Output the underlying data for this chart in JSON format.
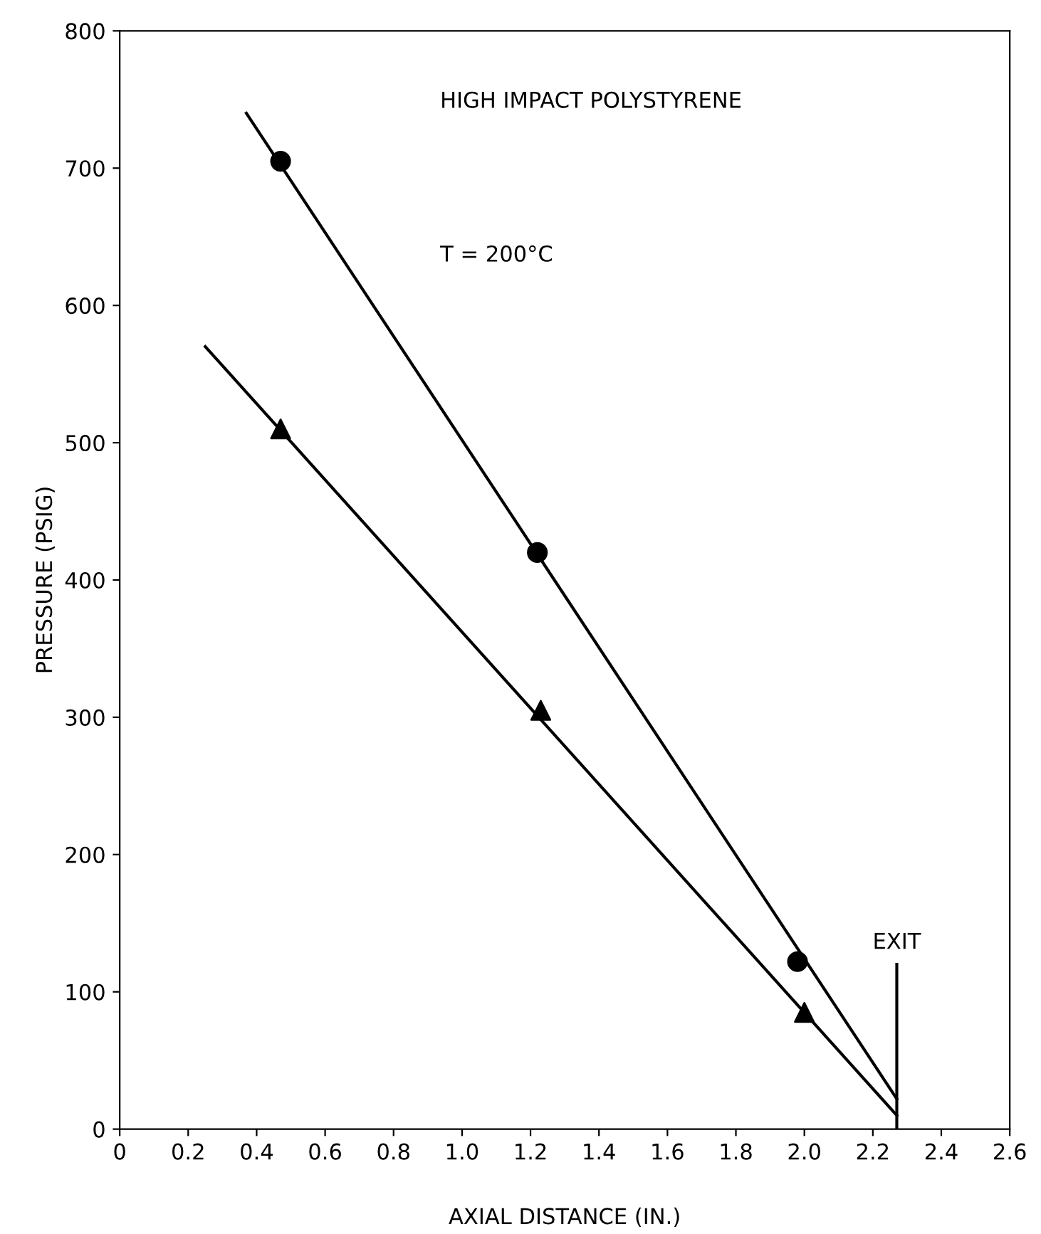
{
  "chart_data": {
    "type": "scatter",
    "xlabel": "AXIAL DISTANCE (IN.)",
    "ylabel": "PRESSURE (PSIG)",
    "annotations": [
      "HIGH IMPACT POLYSTYRENE",
      "T = 200°C"
    ],
    "series": [
      {
        "marker": "circle",
        "color": "#000000",
        "x": [
          0.47,
          1.22,
          1.98
        ],
        "values": [
          705,
          420,
          122
        ]
      },
      {
        "marker": "triangle",
        "color": "#000000",
        "x": [
          0.47,
          1.23,
          2.0
        ],
        "values": [
          510,
          305,
          85
        ]
      },
      {
        "type": "line",
        "color": "#000000",
        "x": [
          0.37,
          2.27
        ],
        "values": [
          740,
          22
        ]
      },
      {
        "type": "line",
        "color": "#000000",
        "x": [
          0.25,
          2.27
        ],
        "values": [
          570,
          10
        ]
      }
    ],
    "ref_lines": [
      {
        "axis": "x",
        "value": 2.27,
        "label": "EXIT",
        "color": "#000000"
      }
    ],
    "xlim": [
      0,
      2.6
    ],
    "ylim": [
      0,
      800
    ],
    "xticks": [
      0,
      0.2,
      0.4,
      0.6,
      0.8,
      {
        "value": 1.0,
        "label": "1.0"
      },
      1.2,
      1.4,
      1.6,
      1.8,
      {
        "value": 2.0,
        "label": "2.0"
      },
      2.2,
      2.4,
      2.6
    ],
    "yticks": [
      0,
      100,
      200,
      300,
      400,
      500,
      600,
      700,
      800
    ],
    "grid": false,
    "legend": false
  }
}
